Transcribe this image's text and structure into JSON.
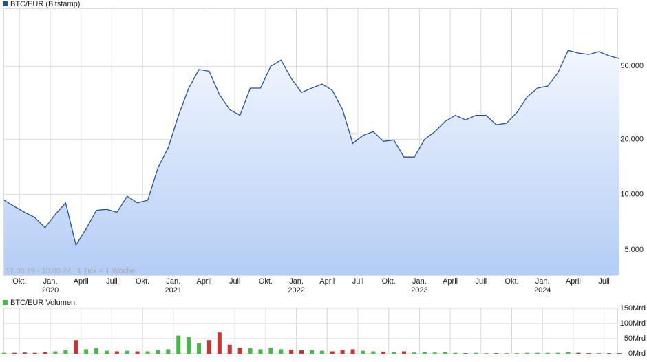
{
  "chart_data": [
    {
      "type": "line",
      "log": true,
      "grid": true,
      "legend": "BTC/EUR (Bitstamp)",
      "date_range": "17.08.19 - 10.08.24",
      "tick_note": "1 Tick = 1 Woche",
      "watermark": "ARIVA.DE",
      "xlim": [
        "2019-08",
        "2024-08"
      ],
      "xticks": [
        {
          "value": "2019-10",
          "label": "Okt."
        },
        {
          "value": "2020-01",
          "label": "Jan.",
          "year": "2020"
        },
        {
          "value": "2020-04",
          "label": "April"
        },
        {
          "value": "2020-07",
          "label": "Juli"
        },
        {
          "value": "2020-10",
          "label": "Okt."
        },
        {
          "value": "2021-01",
          "label": "Jan.",
          "year": "2021"
        },
        {
          "value": "2021-04",
          "label": "April"
        },
        {
          "value": "2021-07",
          "label": "Juli"
        },
        {
          "value": "2021-10",
          "label": "Okt."
        },
        {
          "value": "2022-01",
          "label": "Jan.",
          "year": "2022"
        },
        {
          "value": "2022-04",
          "label": "April"
        },
        {
          "value": "2022-07",
          "label": "Juli"
        },
        {
          "value": "2022-10",
          "label": "Okt."
        },
        {
          "value": "2023-01",
          "label": "Jan.",
          "year": "2023"
        },
        {
          "value": "2023-04",
          "label": "April"
        },
        {
          "value": "2023-07",
          "label": "Juli"
        },
        {
          "value": "2023-10",
          "label": "Okt."
        },
        {
          "value": "2024-01",
          "label": "Jan.",
          "year": "2024"
        },
        {
          "value": "2024-04",
          "label": "April"
        },
        {
          "value": "2024-07",
          "label": "Juli"
        }
      ],
      "ylim": [
        3630,
        103500
      ],
      "yticks": [
        {
          "value": 5000,
          "label": "5.000"
        },
        {
          "value": 10000,
          "label": "10.000"
        },
        {
          "value": 20000,
          "label": "20.000"
        },
        {
          "value": 50000,
          "label": "50.000"
        }
      ],
      "x": [
        "2019-08",
        "2019-09",
        "2019-10",
        "2019-11",
        "2019-12",
        "2020-01",
        "2020-02",
        "2020-03",
        "2020-04",
        "2020-05",
        "2020-06",
        "2020-07",
        "2020-08",
        "2020-09",
        "2020-10",
        "2020-11",
        "2020-12",
        "2021-01",
        "2021-02",
        "2021-03",
        "2021-04",
        "2021-05",
        "2021-06",
        "2021-07",
        "2021-08",
        "2021-09",
        "2021-10",
        "2021-11",
        "2021-12",
        "2022-01",
        "2022-02",
        "2022-03",
        "2022-04",
        "2022-05",
        "2022-06",
        "2022-07",
        "2022-08",
        "2022-09",
        "2022-10",
        "2022-11",
        "2022-12",
        "2023-01",
        "2023-02",
        "2023-03",
        "2023-04",
        "2023-05",
        "2023-06",
        "2023-07",
        "2023-08",
        "2023-09",
        "2023-10",
        "2023-11",
        "2023-12",
        "2024-01",
        "2024-02",
        "2024-03",
        "2024-04",
        "2024-05",
        "2024-06",
        "2024-07",
        "2024-08"
      ],
      "series": [
        {
          "name": "BTC/EUR (Bitstamp)",
          "color": "#1f4fa8",
          "values": [
            9300,
            8600,
            8000,
            7500,
            6600,
            7800,
            9000,
            5300,
            6500,
            8200,
            8300,
            8000,
            9800,
            9000,
            9300,
            14000,
            18000,
            27000,
            38000,
            48000,
            47000,
            35000,
            29000,
            27000,
            38000,
            38000,
            50000,
            54000,
            43000,
            36000,
            38000,
            40000,
            37000,
            29000,
            19000,
            21000,
            22000,
            19500,
            19800,
            16000,
            16000,
            20000,
            22000,
            25000,
            27000,
            25500,
            27000,
            27000,
            24000,
            24500,
            28000,
            34000,
            38000,
            39000,
            46000,
            61000,
            59000,
            58000,
            60000,
            57000,
            55000
          ]
        }
      ]
    },
    {
      "type": "bar",
      "grid": true,
      "legend": "BTC/EUR Volumen",
      "xlim": [
        "2019-08",
        "2024-08"
      ],
      "ylim": [
        0,
        150
      ],
      "yticks": [
        {
          "value": 0,
          "label": "0Mrd"
        },
        {
          "value": 50,
          "label": "50Mrd"
        },
        {
          "value": 100,
          "label": "100Mrd"
        },
        {
          "value": 150,
          "label": "150Mrd"
        }
      ],
      "x": [
        "2019-08",
        "2019-09",
        "2019-10",
        "2019-11",
        "2019-12",
        "2020-01",
        "2020-02",
        "2020-03",
        "2020-04",
        "2020-05",
        "2020-06",
        "2020-07",
        "2020-08",
        "2020-09",
        "2020-10",
        "2020-11",
        "2020-12",
        "2021-01",
        "2021-02",
        "2021-03",
        "2021-04",
        "2021-05",
        "2021-06",
        "2021-07",
        "2021-08",
        "2021-09",
        "2021-10",
        "2021-11",
        "2021-12",
        "2022-01",
        "2022-02",
        "2022-03",
        "2022-04",
        "2022-05",
        "2022-06",
        "2022-07",
        "2022-08",
        "2022-09",
        "2022-10",
        "2022-11",
        "2022-12",
        "2023-01",
        "2023-02",
        "2023-03",
        "2023-04",
        "2023-05",
        "2023-06",
        "2023-07",
        "2023-08",
        "2023-09",
        "2023-10",
        "2023-11",
        "2023-12",
        "2024-01",
        "2024-02",
        "2024-03",
        "2024-04",
        "2024-05",
        "2024-06",
        "2024-07",
        "2024-08"
      ],
      "up_color": "#44bb44",
      "down_color": "#cc3333",
      "series": [
        {
          "name": "BTC/EUR Volumen",
          "color": "#44bb44",
          "values": [
            3,
            3,
            4,
            3,
            5,
            8,
            12,
            45,
            15,
            18,
            10,
            8,
            10,
            8,
            8,
            12,
            15,
            60,
            55,
            35,
            45,
            70,
            30,
            20,
            18,
            15,
            20,
            15,
            14,
            12,
            12,
            10,
            8,
            12,
            15,
            10,
            8,
            7,
            5,
            8,
            4,
            5,
            4,
            5,
            3,
            2,
            3,
            2,
            2,
            2,
            2,
            3,
            3,
            3,
            3,
            5,
            3,
            2,
            2,
            2,
            2
          ]
        }
      ]
    }
  ]
}
